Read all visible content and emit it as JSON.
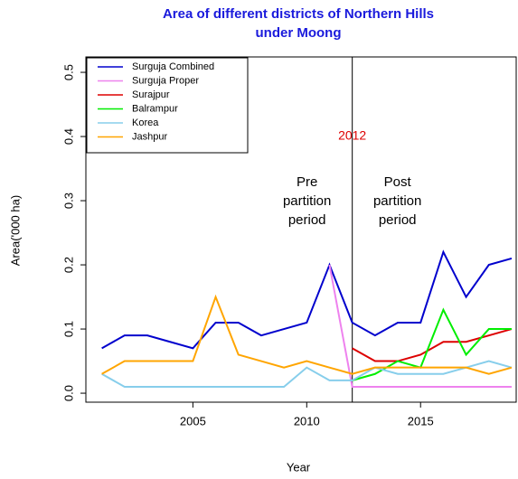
{
  "chart_data": {
    "type": "line",
    "title": [
      "Area of different districts of Northern Hills",
      "under Moong"
    ],
    "xlabel": "Year",
    "ylabel": "Area('000 ha)",
    "x": [
      2001,
      2002,
      2003,
      2004,
      2005,
      2006,
      2007,
      2008,
      2009,
      2010,
      2011,
      2012,
      2013,
      2014,
      2015,
      2016,
      2017,
      2018,
      2019
    ],
    "series": [
      {
        "name": "Surguja Combined",
        "color": "#0000cd",
        "values": [
          0.07,
          0.09,
          0.09,
          0.08,
          0.07,
          0.11,
          0.11,
          0.09,
          0.1,
          0.11,
          0.2,
          0.11,
          0.09,
          0.11,
          0.11,
          0.22,
          0.15,
          0.2,
          0.21
        ]
      },
      {
        "name": "Surguja Proper",
        "color": "#ee82ee",
        "values": [
          null,
          null,
          null,
          null,
          null,
          null,
          null,
          null,
          null,
          null,
          0.2,
          0.01,
          0.01,
          0.01,
          0.01,
          0.01,
          0.01,
          0.01,
          0.01
        ]
      },
      {
        "name": "Surajpur",
        "color": "#dd0000",
        "values": [
          null,
          null,
          null,
          null,
          null,
          null,
          null,
          null,
          null,
          null,
          null,
          0.07,
          0.05,
          0.05,
          0.06,
          0.08,
          0.08,
          0.09,
          0.1
        ]
      },
      {
        "name": "Balrampur",
        "color": "#00ee00",
        "values": [
          null,
          null,
          null,
          null,
          null,
          null,
          null,
          null,
          null,
          null,
          null,
          0.02,
          0.03,
          0.05,
          0.04,
          0.13,
          0.06,
          0.1,
          0.1
        ]
      },
      {
        "name": "Korea",
        "color": "#87ceeb",
        "values": [
          0.03,
          0.01,
          0.01,
          0.01,
          0.01,
          0.01,
          0.01,
          0.01,
          0.01,
          0.04,
          0.02,
          0.02,
          0.04,
          0.03,
          0.03,
          0.03,
          0.04,
          0.05,
          0.04
        ]
      },
      {
        "name": "Jashpur",
        "color": "#ffa500",
        "values": [
          0.03,
          0.05,
          0.05,
          0.05,
          0.05,
          0.15,
          0.06,
          0.05,
          0.04,
          0.05,
          0.04,
          0.03,
          0.04,
          0.04,
          0.04,
          0.04,
          0.04,
          0.03,
          0.04
        ]
      }
    ],
    "xlim": [
      2000.3,
      2019.2
    ],
    "xticks": [
      2005,
      2010,
      2015
    ],
    "ylim": [
      -0.014,
      0.524
    ],
    "yticks": [
      {
        "value": 0,
        "label": "0.0"
      },
      0.1,
      0.2,
      0.3,
      0.4,
      0.5
    ],
    "legend_position": "top-left",
    "vline": 2012,
    "vline_label": "2012",
    "annotations": [
      [
        "Pre",
        "partition",
        "period"
      ],
      [
        "Post",
        "partition",
        "period"
      ]
    ]
  }
}
